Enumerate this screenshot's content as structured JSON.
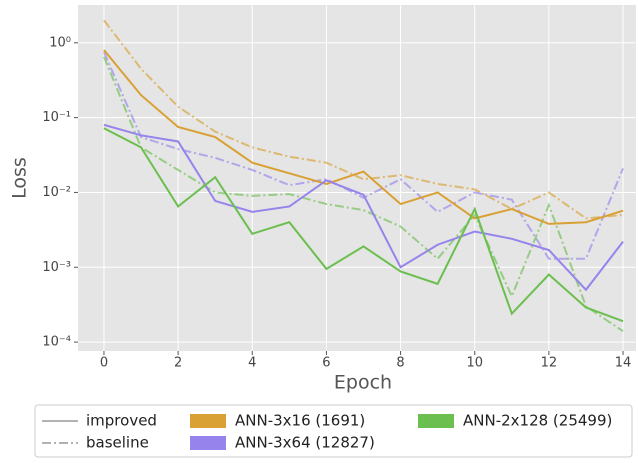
{
  "chart_data": {
    "type": "line",
    "log_y": true,
    "grid": true,
    "x_label": "Epoch",
    "y_label": "Loss",
    "x": [
      0,
      1,
      2,
      3,
      4,
      5,
      6,
      7,
      8,
      9,
      10,
      11,
      12,
      13,
      14
    ],
    "xlim": [
      -0.7,
      14.35
    ],
    "xticks": [
      0,
      2,
      4,
      6,
      8,
      10,
      12,
      14
    ],
    "ylim": [
      7.6e-05,
      3.2
    ],
    "yticks": [
      {
        "value": 1,
        "label": "10⁰"
      },
      {
        "value": 0.1,
        "label": "10⁻¹"
      },
      {
        "value": 0.01,
        "label": "10⁻²"
      },
      {
        "value": 0.001,
        "label": "10⁻³"
      },
      {
        "value": 0.0001,
        "label": "10⁻⁴"
      }
    ],
    "legend_styles": [
      "improved",
      "baseline"
    ],
    "series": [
      {
        "name": "ANN-3x16 (1691)",
        "color": "#d9a033",
        "values": [
          0.8,
          0.2,
          0.075,
          0.055,
          0.025,
          0.018,
          0.013,
          0.019,
          0.007,
          0.01,
          0.0045,
          0.006,
          0.0038,
          0.004,
          0.0057
        ],
        "baseline_values": [
          2.0,
          0.45,
          0.14,
          0.065,
          0.04,
          0.03,
          0.025,
          0.015,
          0.017,
          0.013,
          0.011,
          0.006,
          0.01,
          0.0045,
          0.005
        ]
      },
      {
        "name": "ANN-3x64 (12827)",
        "color": "#9683ec",
        "values": [
          0.08,
          0.058,
          0.048,
          0.0077,
          0.0055,
          0.0065,
          0.0145,
          0.0093,
          0.001,
          0.002,
          0.003,
          0.0024,
          0.0017,
          0.0005,
          0.0022
        ],
        "baseline_values": [
          0.75,
          0.055,
          0.038,
          0.029,
          0.02,
          0.0125,
          0.015,
          0.0085,
          0.015,
          0.0055,
          0.01,
          0.008,
          0.0013,
          0.0013,
          0.021
        ]
      },
      {
        "name": "ANN-2x128 (25499)",
        "color": "#6bbf4e",
        "values": [
          0.072,
          0.04,
          0.0065,
          0.016,
          0.0028,
          0.004,
          0.00095,
          0.0019,
          0.00088,
          0.0006,
          0.006,
          0.00024,
          0.0008,
          0.00029,
          0.00019
        ],
        "baseline_values": [
          0.65,
          0.04,
          0.02,
          0.01,
          0.009,
          0.0095,
          0.007,
          0.0058,
          0.0035,
          0.0013,
          0.005,
          0.00041,
          0.0068,
          0.0003,
          0.00014
        ]
      }
    ]
  }
}
